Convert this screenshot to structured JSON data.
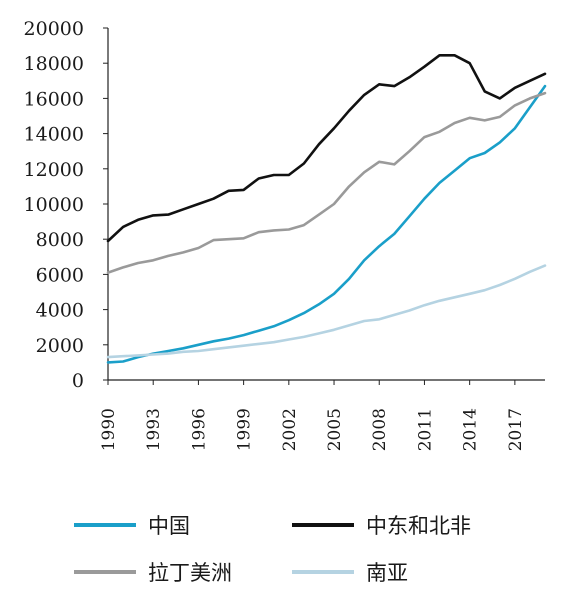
{
  "chart_data": {
    "type": "line",
    "ylim": [
      0,
      20000
    ],
    "yticks": [
      0,
      2000,
      4000,
      6000,
      8000,
      10000,
      12000,
      14000,
      16000,
      18000,
      20000
    ],
    "xticks": [
      1990,
      1993,
      1996,
      1999,
      2002,
      2005,
      2008,
      2011,
      2014,
      2017
    ],
    "xlim": [
      1990,
      2019
    ],
    "grid": false,
    "legend_position": "bottom",
    "series": [
      {
        "name": "中国",
        "color": "#1a9fc9",
        "x": [
          1990,
          1991,
          1992,
          1993,
          1994,
          1995,
          1996,
          1997,
          1998,
          1999,
          2000,
          2001,
          2002,
          2003,
          2004,
          2005,
          2006,
          2007,
          2008,
          2009,
          2010,
          2011,
          2012,
          2013,
          2014,
          2015,
          2016,
          2017,
          2018,
          2019
        ],
        "values": [
          1000,
          1050,
          1300,
          1500,
          1650,
          1800,
          2000,
          2200,
          2350,
          2550,
          2800,
          3050,
          3400,
          3800,
          4300,
          4900,
          5750,
          6800,
          7600,
          8300,
          9300,
          10300,
          11200,
          11900,
          12600,
          12900,
          13500,
          14300,
          15500,
          16700
        ]
      },
      {
        "name": "中东和北非",
        "color": "#111111",
        "x": [
          1990,
          1991,
          1992,
          1993,
          1994,
          1995,
          1996,
          1997,
          1998,
          1999,
          2000,
          2001,
          2002,
          2003,
          2004,
          2005,
          2006,
          2007,
          2008,
          2009,
          2010,
          2011,
          2012,
          2013,
          2014,
          2015,
          2016,
          2017,
          2018,
          2019
        ],
        "values": [
          7900,
          8700,
          9100,
          9350,
          9400,
          9700,
          10000,
          10300,
          10750,
          10800,
          11450,
          11650,
          11650,
          12300,
          13400,
          14300,
          15300,
          16200,
          16800,
          16700,
          17200,
          17800,
          18450,
          18450,
          18000,
          16400,
          16000,
          16600,
          17000,
          17400
        ]
      },
      {
        "name": "拉丁美洲",
        "color": "#9a9a9a",
        "x": [
          1990,
          1991,
          1992,
          1993,
          1994,
          1995,
          1996,
          1997,
          1998,
          1999,
          2000,
          2001,
          2002,
          2003,
          2004,
          2005,
          2006,
          2007,
          2008,
          2009,
          2010,
          2011,
          2012,
          2013,
          2014,
          2015,
          2016,
          2017,
          2018,
          2019
        ],
        "values": [
          6100,
          6400,
          6650,
          6800,
          7050,
          7250,
          7500,
          7950,
          8000,
          8050,
          8400,
          8500,
          8550,
          8800,
          9400,
          10000,
          11000,
          11800,
          12400,
          12250,
          13000,
          13800,
          14100,
          14600,
          14900,
          14750,
          14950,
          15600,
          16000,
          16300
        ]
      },
      {
        "name": "南亚",
        "color": "#b5d3e2",
        "x": [
          1990,
          1991,
          1992,
          1993,
          1994,
          1995,
          1996,
          1997,
          1998,
          1999,
          2000,
          2001,
          2002,
          2003,
          2004,
          2005,
          2006,
          2007,
          2008,
          2009,
          2010,
          2011,
          2012,
          2013,
          2014,
          2015,
          2016,
          2017,
          2018,
          2019
        ],
        "values": [
          1300,
          1350,
          1400,
          1450,
          1500,
          1600,
          1650,
          1750,
          1850,
          1950,
          2050,
          2150,
          2300,
          2450,
          2650,
          2850,
          3100,
          3350,
          3450,
          3700,
          3950,
          4250,
          4500,
          4700,
          4900,
          5100,
          5400,
          5750,
          6150,
          6500
        ]
      }
    ]
  }
}
